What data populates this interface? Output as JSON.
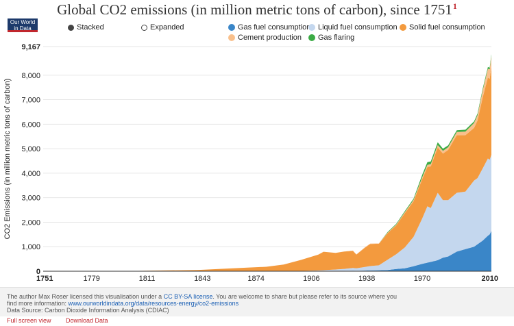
{
  "title": "Global CO2 emissions (in million metric tons of carbon), since 1751",
  "title_note": "1",
  "logo": {
    "line1": "Our World",
    "line2": "in Data"
  },
  "controls": {
    "stacked_label": "Stacked",
    "expanded_label": "Expanded",
    "selected": "stacked"
  },
  "chart_data": {
    "type": "area",
    "stacked": true,
    "title": "Global CO2 emissions (in million metric tons of carbon), since 1751",
    "ylabel": "CO2 Emissions (in million metric tons of carbon)",
    "xlabel": "",
    "xlim": [
      1751,
      2010
    ],
    "ylim": [
      0,
      9167
    ],
    "x_ticks": [
      1751,
      1779,
      1811,
      1843,
      1874,
      1906,
      1938,
      1970,
      2010
    ],
    "x_tick_labels": [
      "1751",
      "1779",
      "1811",
      "1843",
      "1874",
      "1906",
      "1938",
      "1970",
      "2010"
    ],
    "y_ticks": [
      0,
      1000,
      2000,
      3000,
      4000,
      5000,
      6000,
      7000,
      8000,
      9167
    ],
    "y_tick_labels": [
      "0",
      "1,000",
      "2,000",
      "3,000",
      "4,000",
      "5,000",
      "6,000",
      "7,000",
      "8,000",
      "9,167"
    ],
    "legend_position": "top",
    "grid": true,
    "x": [
      1751,
      1800,
      1840,
      1870,
      1880,
      1890,
      1900,
      1910,
      1913,
      1920,
      1925,
      1930,
      1932,
      1937,
      1940,
      1945,
      1950,
      1955,
      1960,
      1965,
      1970,
      1973,
      1975,
      1979,
      1982,
      1985,
      1990,
      1995,
      2000,
      2002,
      2005,
      2008,
      2009,
      2010
    ],
    "series": [
      {
        "name": "Gas fuel consumption",
        "color": "#3a86c8",
        "values": [
          0,
          0,
          0,
          0,
          0,
          0,
          0,
          5,
          8,
          10,
          15,
          20,
          18,
          25,
          30,
          40,
          50,
          90,
          120,
          200,
          300,
          350,
          380,
          450,
          550,
          600,
          800,
          900,
          1000,
          1100,
          1250,
          1450,
          1500,
          1650
        ]
      },
      {
        "name": "Liquid fuel consumption",
        "color": "#c4d7ee",
        "values": [
          0,
          0,
          0,
          0,
          1,
          3,
          10,
          25,
          35,
          60,
          80,
          110,
          100,
          150,
          180,
          200,
          420,
          600,
          850,
          1200,
          1850,
          2300,
          2200,
          2750,
          2350,
          2300,
          2400,
          2350,
          2700,
          2700,
          2950,
          3150,
          3050,
          3100
        ]
      },
      {
        "name": "Solid fuel consumption",
        "color": "#f39a3e",
        "values": [
          3,
          8,
          50,
          150,
          180,
          270,
          450,
          650,
          750,
          680,
          710,
          700,
          560,
          790,
          900,
          880,
          1080,
          1180,
          1400,
          1450,
          1600,
          1600,
          1700,
          1850,
          1900,
          2050,
          2350,
          2300,
          2150,
          2350,
          2900,
          3300,
          3300,
          3600
        ]
      },
      {
        "name": "Cement production",
        "color": "#f9c08c",
        "values": [
          0,
          0,
          0,
          0,
          0,
          0,
          0,
          0,
          0,
          0,
          0,
          10,
          10,
          15,
          20,
          15,
          20,
          30,
          40,
          60,
          80,
          90,
          90,
          100,
          110,
          110,
          130,
          150,
          200,
          220,
          290,
          360,
          390,
          430
        ]
      },
      {
        "name": "Gas flaring",
        "color": "#3bab45",
        "values": [
          0,
          0,
          0,
          0,
          0,
          0,
          0,
          0,
          0,
          0,
          0,
          0,
          0,
          0,
          0,
          0,
          25,
          30,
          40,
          50,
          100,
          110,
          110,
          110,
          90,
          75,
          70,
          75,
          65,
          65,
          70,
          70,
          70,
          70
        ]
      }
    ]
  },
  "legend": [
    {
      "label": "Gas fuel consumption",
      "color": "#3a86c8"
    },
    {
      "label": "Liquid fuel consumption",
      "color": "#c4d7ee"
    },
    {
      "label": "Solid fuel consumption",
      "color": "#f39a3e"
    },
    {
      "label": "Cement production",
      "color": "#f9c08c"
    },
    {
      "label": "Gas flaring",
      "color": "#3bab45"
    }
  ],
  "footer": {
    "line1_prefix": "The author Max Roser licensed this visualisation under a ",
    "license_link": "CC BY-SA license",
    "line1_suffix": ". You are welcome to share but please refer to its source where you",
    "line2_prefix": "find more information: ",
    "source_link": "www.ourworldindata.org/data/resources-energy/co2-emissions",
    "line3": "Data Source: Carbon Dioxide Information Analysis (CDIAC)"
  },
  "links": {
    "fullscreen": "Full screen view",
    "download": "Download Data"
  }
}
